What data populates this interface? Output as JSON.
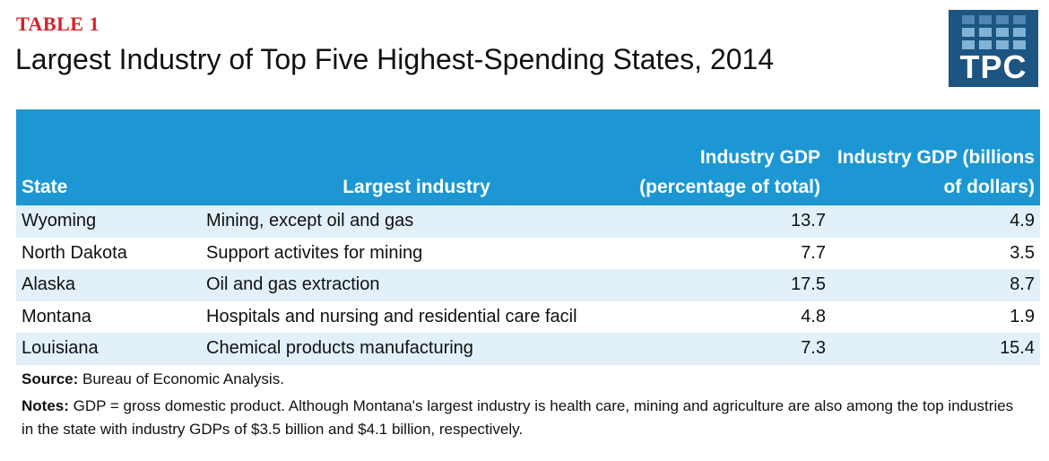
{
  "header": {
    "label": "TABLE 1",
    "title": "Largest Industry of Top Five Highest-Spending States, 2014"
  },
  "logo": {
    "text": "TPC",
    "background_color": "#1c5582",
    "square_colors": [
      "#4f87b3",
      "#80b3d6"
    ]
  },
  "colors": {
    "label_red": "#d6202a",
    "header_blue": "#1c97d3",
    "stripe_light": "#e1f0f9"
  },
  "chart_data": {
    "type": "table",
    "columns": [
      "State",
      "Largest industry",
      "Industry GDP (percentage of total)",
      "Industry GDP (billions of dollars)"
    ],
    "rows": [
      [
        "Wyoming",
        "Mining, except oil and gas",
        "13.7",
        "4.9"
      ],
      [
        "North Dakota",
        "Support activites for mining",
        "7.7",
        "3.5"
      ],
      [
        "Alaska",
        "Oil and gas extraction",
        "17.5",
        "8.7"
      ],
      [
        "Montana",
        "Hospitals and nursing and residential care facil",
        "4.8",
        "1.9"
      ],
      [
        "Louisiana",
        "Chemical products manufacturing",
        "7.3",
        "15.4"
      ]
    ]
  },
  "footer": {
    "source_label": "Source:",
    "source_text": "Bureau of Economic Analysis.",
    "notes_label": "Notes:",
    "notes_text": "GDP = gross domestic product. Although Montana's largest industry is health care, mining and agriculture are also among the top industries in the state with industry GDPs of $3.5 billion and $4.1 billion, respectively."
  }
}
